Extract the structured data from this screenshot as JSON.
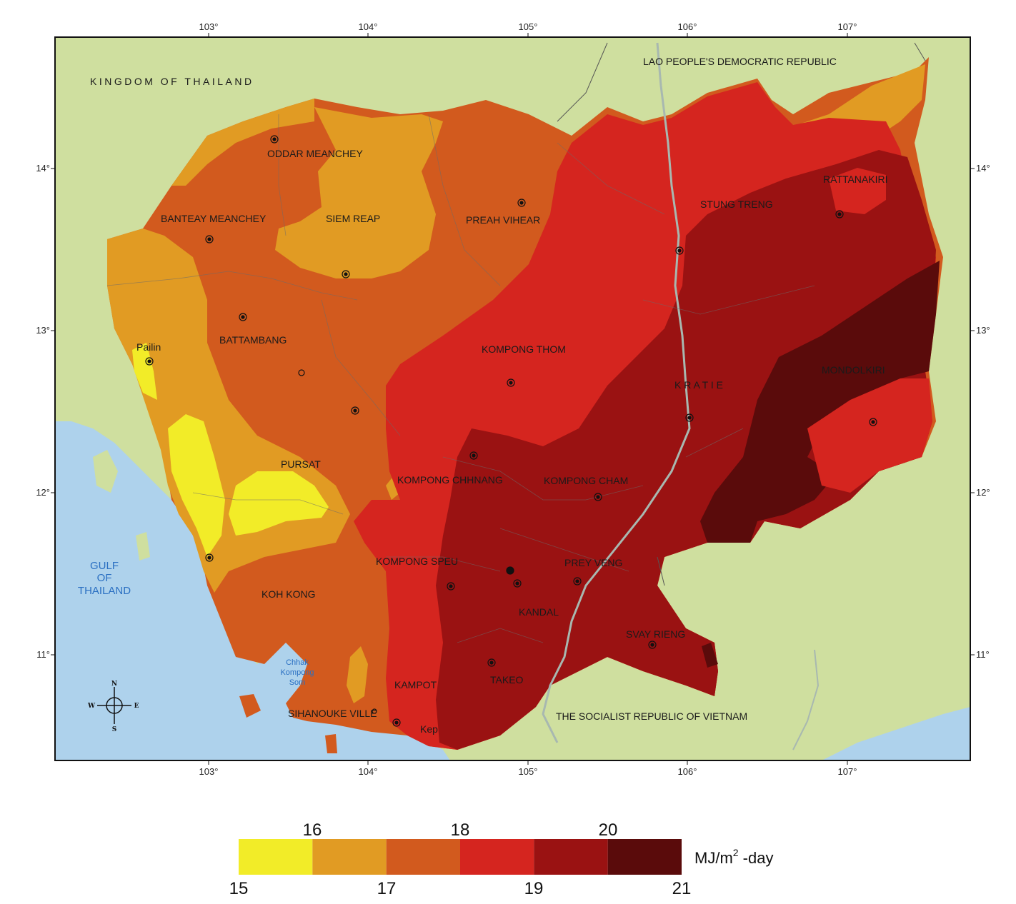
{
  "map": {
    "top_ticks": [
      "103°",
      "104°",
      "105°",
      "106°",
      "107°"
    ],
    "bottom_ticks": [
      "103°",
      "104°",
      "105°",
      "106°",
      "107°"
    ],
    "left_ticks": [
      "14°",
      "13°",
      "12°",
      "11°"
    ],
    "right_ticks": [
      "14°",
      "13°",
      "12°",
      "11°"
    ],
    "countries": {
      "thailand": "KINGDOM OF THAILAND",
      "laos": "LAO PEOPLE'S DEMOCRATIC REPUBLIC",
      "vietnam": "THE SOCIALIST REPUBLIC OF VIETNAM"
    },
    "water": {
      "gulf_line1": "GULF",
      "gulf_line2": "OF",
      "gulf_line3": "THAILAND",
      "bay_line1": "Chhak",
      "bay_line2": "Kompong",
      "bay_line3": "Som"
    },
    "provinces": {
      "oddar_meanchey": "ODDAR MEANCHEY",
      "banteay_meanchey": "BANTEAY MEANCHEY",
      "siem_reap": "SIEM REAP",
      "preah_vihear": "PREAH  VIHEAR",
      "stung_treng": "STUNG TRENG",
      "rattanakiri": "RATTANAKIRI",
      "pailin": "Pailin",
      "battambang": "BATTAMBANG",
      "kompong_thom": "KOMPONG  THOM",
      "kratie": "K R A T I E",
      "mondolkiri": "MONDOLKIRI",
      "pursat": "PURSAT",
      "kompong_chhnang": "KOMPONG CHHNANG",
      "kompong_cham": "KOMPONG  CHAM",
      "kompong_speu": "KOMPONG SPEU",
      "prey_veng": "PREY VENG",
      "koh_kong": "KOH KONG",
      "kandal": "KANDAL",
      "svay_rieng": "SVAY RIENG",
      "takeo": "TAKEO",
      "kampot": "KAMPOT",
      "sihanoukville": "SIHANOUKE VILLE",
      "kep": "Kep"
    },
    "compass": {
      "n": "N",
      "s": "S",
      "e": "E",
      "w": "W"
    }
  },
  "legend": {
    "top_values": [
      "16",
      "18",
      "20"
    ],
    "bottom_values": [
      "15",
      "17",
      "19",
      "21"
    ],
    "unit_prefix": "MJ/m",
    "unit_sup": "2",
    "unit_suffix": " -day",
    "bins": [
      {
        "from": 15,
        "to": 16,
        "color": "#f2ec28"
      },
      {
        "from": 16,
        "to": 17,
        "color": "#e19b23"
      },
      {
        "from": 17,
        "to": 18,
        "color": "#d25a1e"
      },
      {
        "from": 18,
        "to": 19,
        "color": "#d5251f"
      },
      {
        "from": 19,
        "to": 20,
        "color": "#9a1212"
      },
      {
        "from": 20,
        "to": 21,
        "color": "#5a0b0b"
      }
    ]
  },
  "colors": {
    "land": "#cfdf9f",
    "sea": "#aed2ec",
    "frame": "#111111"
  }
}
